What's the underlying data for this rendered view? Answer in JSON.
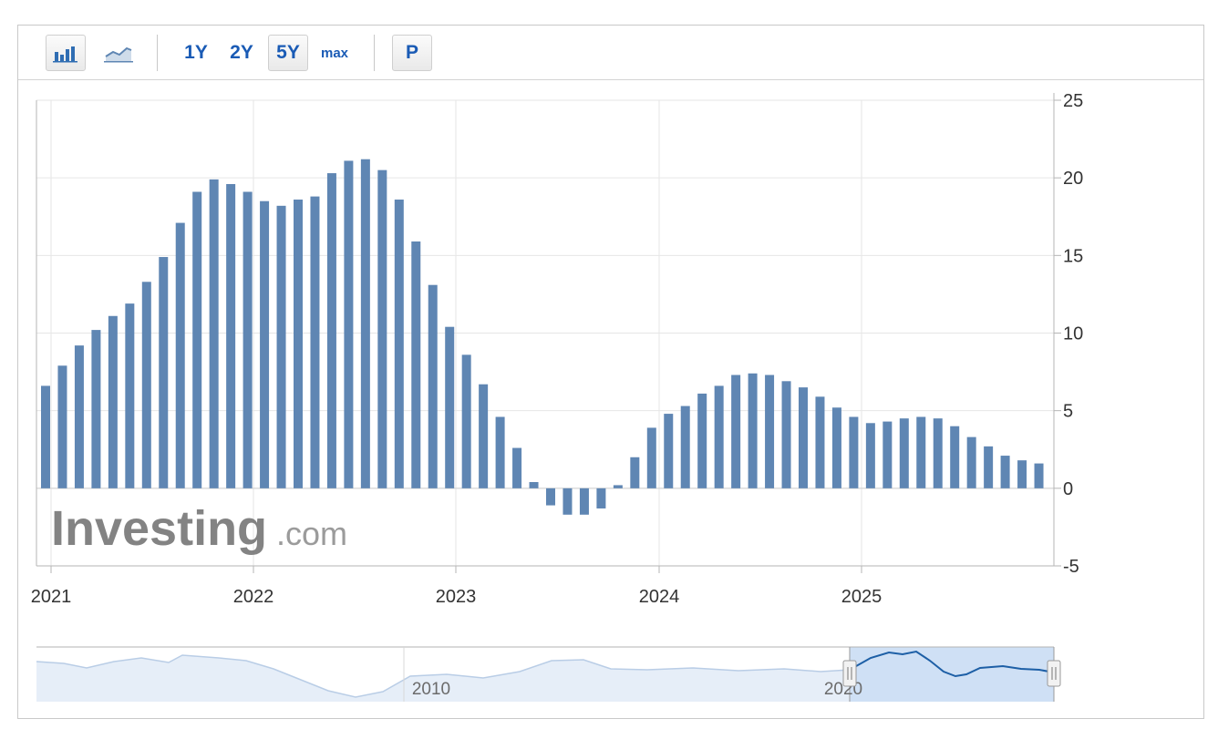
{
  "toolbar": {
    "bar_chart_icon": "bar-chart-icon",
    "line_chart_icon": "line-chart-icon",
    "ranges": [
      "1Y",
      "2Y",
      "5Y",
      "max"
    ],
    "selected_range": "5Y",
    "p_label": "P"
  },
  "watermark": {
    "brand": "Investing",
    "suffix": ".com"
  },
  "colors": {
    "bar": "#5f86b3",
    "navigator_line": "#1d5fa6",
    "navigator_fill": "#cfe0f5",
    "accent": "#1a5bb5"
  },
  "chart_data": {
    "type": "bar",
    "x_tick_labels": [
      "2021",
      "2022",
      "2023",
      "2024",
      "2025"
    ],
    "y_tick_labels": [
      "25",
      "20",
      "15",
      "10",
      "5",
      "0",
      "-5"
    ],
    "ylim": [
      -5,
      25
    ],
    "grid": true,
    "y_axis_side": "right",
    "series": [
      {
        "values": [
          6.6,
          7.9,
          9.2,
          10.2,
          11.1,
          11.9,
          13.3,
          14.9,
          17.1,
          19.1,
          19.9,
          19.6,
          19.1,
          18.5,
          18.2,
          18.6,
          18.8,
          20.3,
          21.1,
          21.2,
          20.5,
          18.6,
          15.9,
          13.1,
          10.4,
          8.6,
          6.7,
          4.6,
          2.6,
          0.4,
          -1.1,
          -1.7,
          -1.7,
          -1.3,
          0.2,
          2.0,
          3.9,
          4.8,
          5.3,
          6.1,
          6.6,
          7.3,
          7.4,
          7.3,
          6.9,
          6.5,
          5.9,
          5.2,
          4.6,
          4.2,
          4.3,
          4.5,
          4.6,
          4.5,
          4.0,
          3.3,
          2.7,
          2.1,
          1.8,
          1.6
        ]
      }
    ]
  },
  "navigator": {
    "x_tick_labels": [
      "2010",
      "2020"
    ]
  }
}
